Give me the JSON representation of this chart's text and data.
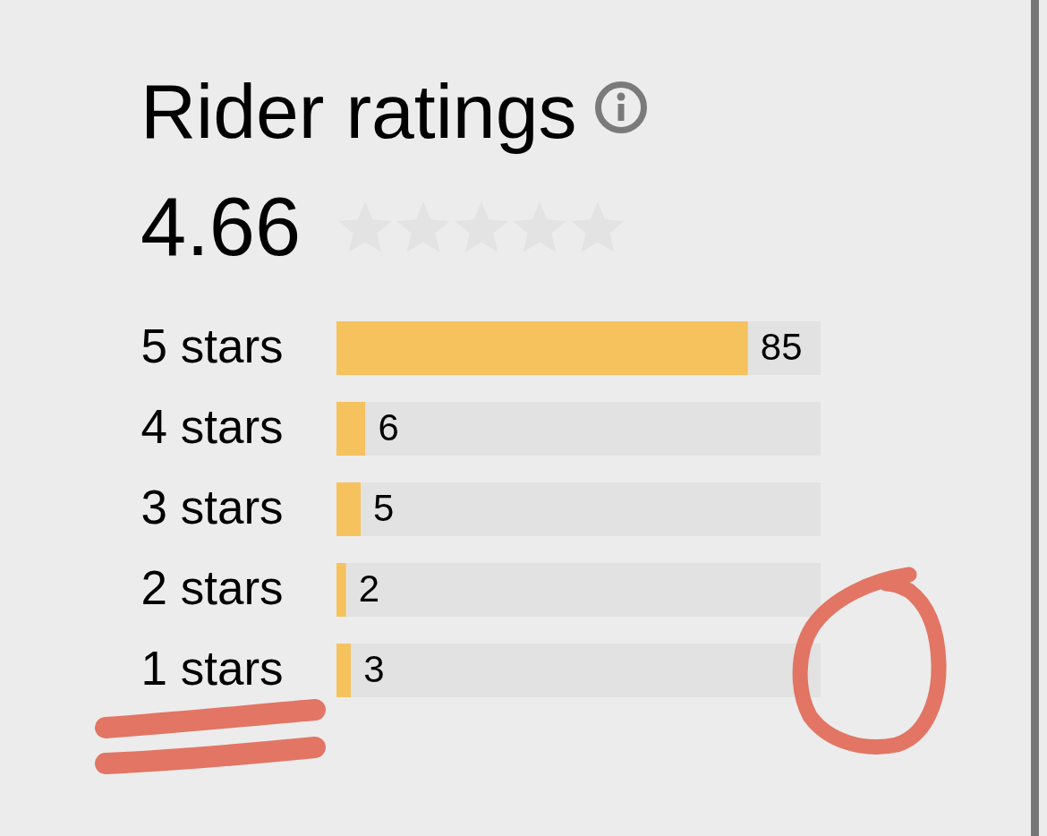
{
  "chart_data": {
    "type": "bar",
    "orientation": "horizontal",
    "stacked": true,
    "title": "Rider ratings",
    "subtitle": "4.66",
    "categories": [
      "5 stars",
      "4 stars",
      "3 stars",
      "2 stars",
      "1 stars"
    ],
    "series": [
      {
        "color": "#f5c25e",
        "values": [
          85,
          6,
          5,
          2,
          3
        ],
        "value_labels": [
          "85",
          "6",
          "5",
          "2",
          "3"
        ]
      },
      {
        "color": "#e2e2e2",
        "values": [
          15,
          94,
          95,
          98,
          97
        ]
      }
    ]
  }
}
